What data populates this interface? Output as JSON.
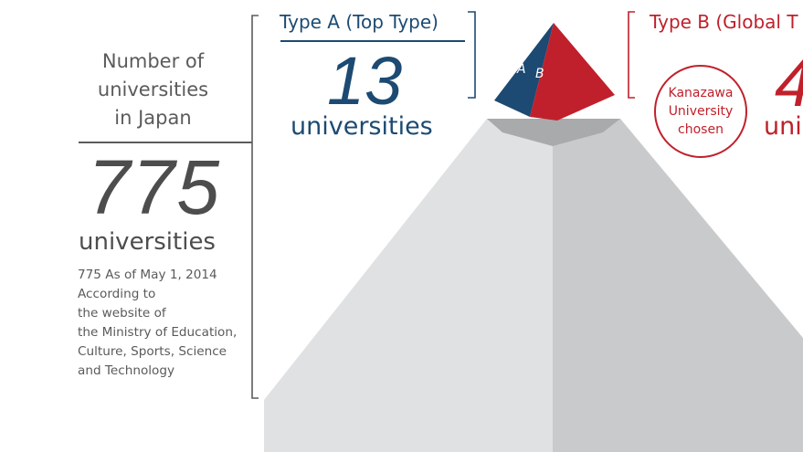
{
  "national": {
    "heading_line1": "Number of",
    "heading_line2": "universities",
    "heading_line3": "in Japan",
    "count": "775",
    "unit": "universities",
    "note_line1": "775 As of May 1, 2014",
    "note_line2": "According to",
    "note_line3": "the website of",
    "note_line4": "the Ministry of Education,",
    "note_line5": "Culture, Sports, Science",
    "note_line6": "and Technology"
  },
  "type_a": {
    "title": "Type A (Top Type)",
    "count": "13",
    "unit": "universities",
    "pyramid_label": "A",
    "color": "#1c4a72"
  },
  "type_b": {
    "title": "Type B (Global T",
    "badge_line1": "Kanazawa",
    "badge_line2": "University",
    "badge_line3": "chosen",
    "count_partial": "4",
    "unit_partial": "uni",
    "pyramid_label": "B",
    "color": "#c0202b"
  },
  "colors": {
    "pyramid_left": "#e0e1e3",
    "pyramid_right": "#c9cacc",
    "pyramid_top_band": "#a9aaac",
    "text_gray": "#5b5b5b"
  }
}
